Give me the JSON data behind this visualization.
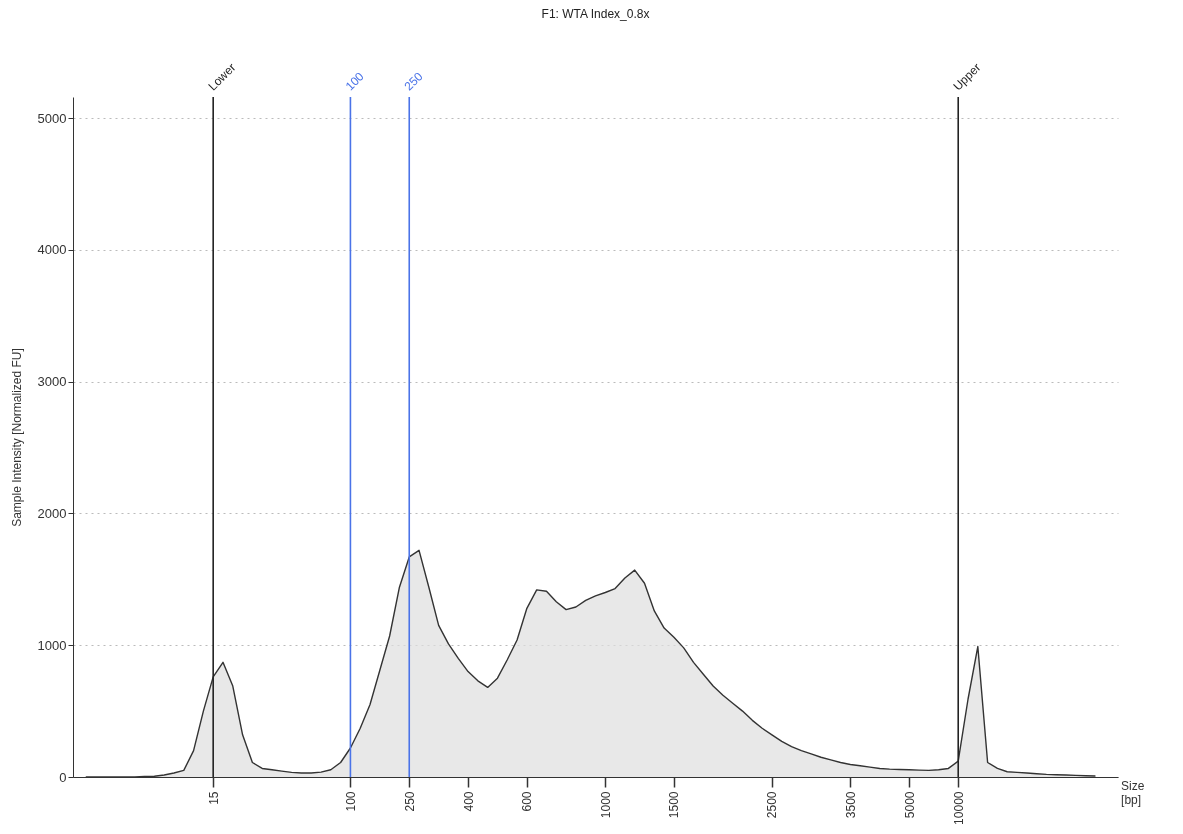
{
  "chart_data": {
    "type": "area",
    "title": "F1: WTA Index_0.8x",
    "xlabel": "Size [bp]",
    "ylabel": "Sample Intensity [Normalized FU]",
    "categories": [
      null,
      null,
      null,
      null,
      null,
      null,
      null,
      null,
      null,
      null,
      null,
      null,
      null,
      null,
      "15",
      null,
      null,
      null,
      null,
      null,
      null,
      null,
      null,
      null,
      null,
      null,
      null,
      null,
      "100",
      null,
      null,
      null,
      null,
      null,
      "250",
      null,
      null,
      null,
      null,
      null,
      "400",
      null,
      null,
      null,
      null,
      null,
      "600",
      null,
      null,
      null,
      null,
      null,
      null,
      null,
      "1000",
      null,
      null,
      null,
      null,
      null,
      null,
      "1500",
      null,
      null,
      null,
      null,
      null,
      null,
      null,
      null,
      null,
      "2500",
      null,
      null,
      null,
      null,
      null,
      null,
      null,
      "3500",
      null,
      null,
      null,
      null,
      null,
      "5000",
      null,
      null,
      null,
      null,
      "10000",
      null,
      null,
      null,
      null,
      null,
      null,
      null,
      null,
      null,
      null,
      null,
      null,
      null,
      null,
      null,
      null
    ],
    "series": [
      {
        "color": "#dedede",
        "values": [
          null,
          0,
          0,
          0,
          0,
          0,
          0,
          4,
          6,
          15,
          30,
          50,
          200,
          500,
          760,
          870,
          690,
          320,
          110,
          65,
          55,
          45,
          35,
          30,
          30,
          37,
          55,
          110,
          220,
          370,
          550,
          810,
          1070,
          1440,
          1670,
          1720,
          1440,
          1150,
          1010,
          900,
          800,
          730,
          680,
          750,
          890,
          1040,
          1280,
          1420,
          1410,
          1330,
          1270,
          1290,
          1340,
          1375,
          1400,
          1430,
          1510,
          1570,
          1470,
          1260,
          1130,
          1060,
          980,
          870,
          780,
          690,
          620,
          560,
          500,
          430,
          370,
          320,
          270,
          230,
          200,
          175,
          150,
          130,
          110,
          95,
          85,
          75,
          65,
          60,
          57,
          55,
          52,
          50,
          55,
          65,
          120,
          590,
          990,
          110,
          65,
          40,
          35,
          30,
          25,
          20,
          17,
          15,
          12,
          10,
          8,
          null,
          null
        ]
      }
    ],
    "ylim": [
      0,
      5160
    ],
    "yticks": [
      0,
      1000,
      2000,
      3000,
      4000,
      5000
    ],
    "grid": "y",
    "ref_lines": [
      {
        "axis": "x",
        "value": "15",
        "label": "Lower",
        "color": "#222222"
      },
      {
        "axis": "x",
        "value": "100",
        "label": "100",
        "color": "#4a73e8"
      },
      {
        "axis": "x",
        "value": "250",
        "label": "250",
        "color": "#4a73e8"
      },
      {
        "axis": "x",
        "value": "10000",
        "label": "Upper",
        "color": "#222222"
      }
    ]
  }
}
